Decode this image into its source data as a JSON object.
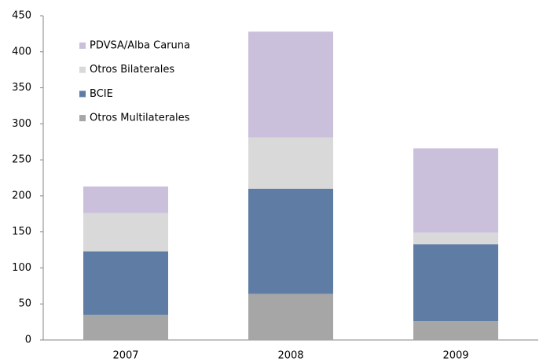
{
  "chart_data": {
    "type": "stacked_bar",
    "categories": [
      "2007",
      "2008",
      "2009"
    ],
    "series": [
      {
        "name": "Otros Multilaterales",
        "color": "#a6a6a6",
        "values": [
          35,
          64,
          26
        ]
      },
      {
        "name": "BCIE",
        "color": "#5e7ca4",
        "values": [
          88,
          146,
          107
        ]
      },
      {
        "name": "Otros Bilaterales",
        "color": "#d9d9d9",
        "values": [
          53,
          71,
          16
        ]
      },
      {
        "name": "PDVSA/Alba Caruna",
        "color": "#cac0dc",
        "values": [
          37,
          147,
          117
        ]
      }
    ],
    "ylim": [
      0,
      450
    ],
    "yticks": [
      0,
      50,
      100,
      150,
      200,
      250,
      300,
      350,
      400,
      450
    ],
    "grid": false,
    "legend": "top-left"
  }
}
